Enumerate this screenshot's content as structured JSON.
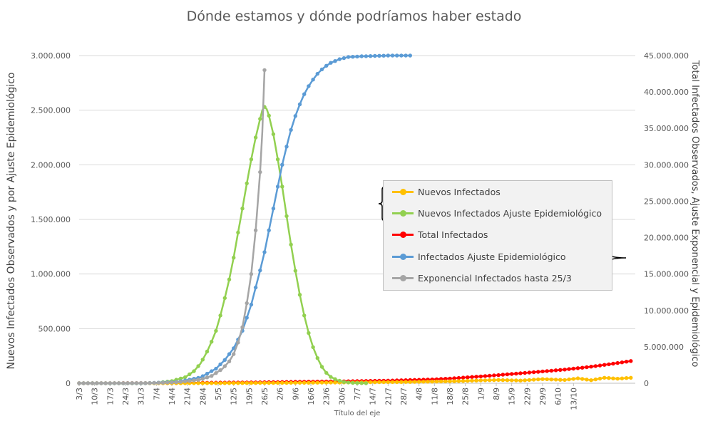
{
  "chart_data": {
    "type": "line",
    "title": "Dónde estamos y dónde podríamos haber estado",
    "xlabel": "Título del eje",
    "ylabel_left": "Nuevos Infectados Observados y por Ajuste Epidemiológico",
    "ylabel_right": "Total Infectados Observados, Ajuste Exponencial y Epidemiológico",
    "categories": [
      "3/3",
      "10/3",
      "17/3",
      "24/3",
      "31/3",
      "7/4",
      "14/4",
      "21/4",
      "28/4",
      "5/5",
      "12/5",
      "19/5",
      "26/5",
      "2/6",
      "9/6",
      "16/6",
      "23/6",
      "30/6",
      "7/7",
      "14/7",
      "21/7",
      "28/7",
      "4/8",
      "11/8",
      "18/8",
      "25/8",
      "1/9",
      "8/9",
      "15/9",
      "22/9",
      "29/9",
      "6/10",
      "13/10"
    ],
    "y_left_ticks": [
      "0",
      "500.000",
      "1.000.000",
      "1.500.000",
      "2.000.000",
      "2.500.000",
      "3.000.000"
    ],
    "y_right_ticks": [
      "0",
      "5.000.000",
      "10.000.000",
      "15.000.000",
      "20.000.000",
      "25.000.000",
      "30.000.000",
      "35.000.000",
      "40.000.000",
      "45.000.000"
    ],
    "ylim_left": [
      0,
      3000000
    ],
    "ylim_right": [
      0,
      45000000
    ],
    "grid": true,
    "legend_position": "right-center",
    "legend_groups": [
      "left-axis",
      "right-axis"
    ],
    "series": [
      {
        "name": "Nuevos Infectados",
        "axis": "left",
        "color": "#ffc000",
        "points": [
          [
            0,
            0
          ],
          [
            30,
            0
          ],
          [
            60,
            500
          ],
          [
            90,
            3000
          ],
          [
            120,
            7000
          ],
          [
            150,
            12000
          ],
          [
            170,
            18000
          ],
          [
            180,
            25000
          ],
          [
            190,
            30000
          ],
          [
            200,
            25000
          ],
          [
            210,
            38000
          ],
          [
            220,
            30000
          ],
          [
            226,
            45000
          ],
          [
            232,
            28000
          ],
          [
            238,
            50000
          ],
          [
            244,
            42000
          ],
          [
            250,
            50000
          ]
        ]
      },
      {
        "name": "Nuevos Infectados Ajuste Epidemiológico",
        "axis": "left",
        "color": "#92d050",
        "points": [
          [
            0,
            0
          ],
          [
            25,
            0
          ],
          [
            35,
            3000
          ],
          [
            42,
            20000
          ],
          [
            48,
            55000
          ],
          [
            52,
            110000
          ],
          [
            55,
            180000
          ],
          [
            58,
            290000
          ],
          [
            60,
            380000
          ],
          [
            62,
            480000
          ],
          [
            64,
            620000
          ],
          [
            66,
            780000
          ],
          [
            68,
            950000
          ],
          [
            70,
            1150000
          ],
          [
            72,
            1380000
          ],
          [
            74,
            1600000
          ],
          [
            76,
            1830000
          ],
          [
            78,
            2050000
          ],
          [
            80,
            2250000
          ],
          [
            82,
            2420000
          ],
          [
            83,
            2500000
          ],
          [
            84,
            2530000
          ],
          [
            85,
            2510000
          ],
          [
            86,
            2450000
          ],
          [
            88,
            2280000
          ],
          [
            90,
            2050000
          ],
          [
            92,
            1800000
          ],
          [
            94,
            1530000
          ],
          [
            96,
            1270000
          ],
          [
            98,
            1030000
          ],
          [
            100,
            810000
          ],
          [
            102,
            620000
          ],
          [
            104,
            460000
          ],
          [
            106,
            330000
          ],
          [
            108,
            230000
          ],
          [
            110,
            150000
          ],
          [
            112,
            95000
          ],
          [
            114,
            58000
          ],
          [
            117,
            28000
          ],
          [
            120,
            12000
          ],
          [
            124,
            3000
          ],
          [
            130,
            0
          ]
        ]
      },
      {
        "name": "Total Infectados",
        "axis": "right",
        "color": "#ff0000",
        "points": [
          [
            0,
            0
          ],
          [
            40,
            30000
          ],
          [
            80,
            120000
          ],
          [
            100,
            200000
          ],
          [
            120,
            260000
          ],
          [
            140,
            360000
          ],
          [
            160,
            520000
          ],
          [
            170,
            680000
          ],
          [
            180,
            900000
          ],
          [
            190,
            1120000
          ],
          [
            200,
            1370000
          ],
          [
            210,
            1620000
          ],
          [
            220,
            1880000
          ],
          [
            230,
            2200000
          ],
          [
            240,
            2600000
          ],
          [
            250,
            3050000
          ]
        ]
      },
      {
        "name": "Infectados Ajuste Epidemiológico",
        "axis": "right",
        "color": "#5b9bd5",
        "points": [
          [
            0,
            0
          ],
          [
            30,
            0
          ],
          [
            45,
            200000
          ],
          [
            55,
            800000
          ],
          [
            62,
            2000000
          ],
          [
            66,
            3200000
          ],
          [
            70,
            4800000
          ],
          [
            74,
            7200000
          ],
          [
            78,
            10800000
          ],
          [
            82,
            15500000
          ],
          [
            84,
            18000000
          ],
          [
            86,
            21000000
          ],
          [
            88,
            24000000
          ],
          [
            90,
            27000000
          ],
          [
            92,
            30000000
          ],
          [
            94,
            32500000
          ],
          [
            96,
            34800000
          ],
          [
            98,
            36700000
          ],
          [
            100,
            38300000
          ],
          [
            102,
            39700000
          ],
          [
            104,
            40800000
          ],
          [
            106,
            41700000
          ],
          [
            108,
            42500000
          ],
          [
            110,
            43100000
          ],
          [
            112,
            43600000
          ],
          [
            114,
            44000000
          ],
          [
            118,
            44500000
          ],
          [
            122,
            44800000
          ],
          [
            128,
            44900000
          ],
          [
            140,
            45000000
          ],
          [
            150,
            45000000
          ]
        ]
      },
      {
        "name": "Exponencial Infectados hasta 25/3",
        "axis": "right",
        "color": "#a5a5a5",
        "points": [
          [
            0,
            0
          ],
          [
            20,
            8000
          ],
          [
            35,
            40000
          ],
          [
            45,
            150000
          ],
          [
            55,
            500000
          ],
          [
            60,
            1000000
          ],
          [
            65,
            2000000
          ],
          [
            68,
            3000000
          ],
          [
            70,
            4000000
          ],
          [
            72,
            5600000
          ],
          [
            74,
            7700000
          ],
          [
            76,
            11000000
          ],
          [
            78,
            15000000
          ],
          [
            80,
            21000000
          ],
          [
            82,
            29000000
          ],
          [
            83,
            34500000
          ],
          [
            84,
            43000000
          ],
          [
            84.8,
            45000000
          ]
        ]
      }
    ]
  }
}
